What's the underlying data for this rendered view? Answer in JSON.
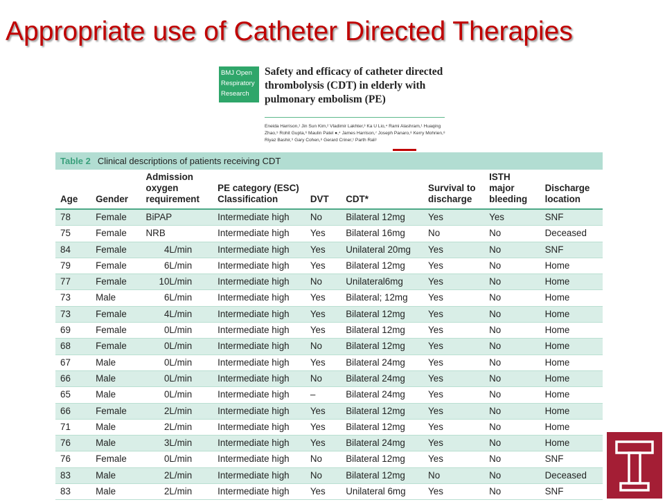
{
  "slide": {
    "title": "Appropriate use of Catheter Directed Therapies"
  },
  "paper": {
    "journal": [
      "BMJ Open",
      "Respiratory",
      "Research"
    ],
    "title": "Safety and efficacy of catheter directed thrombolysis (CDT) in elderly with pulmonary embolism (PE)",
    "authors": "Eneida Harrison,¹ Jin Sun Kim,² Vladimir Lakhter,³ Ka U Lio,⁴ Rami Alashram,¹ Huaqing Zhao,⁵ Rohit Gupta,⁶ Maulin Patel ●,⁴ James Harrison,⁷ Joseph Panaro,⁸ Kerry Mohrien,⁸ Riyaz Bashir,⁹ Gary Cohen,⁸ Gerard Criner,¹ Parth Rali¹"
  },
  "table": {
    "label": "Table 2",
    "caption": "Clinical descriptions of patients receiving CDT",
    "columns": [
      "Age",
      "Gender",
      "Admission oxygen requirement",
      "PE category (ESC) Classification",
      "DVT",
      "CDT*",
      "Survival to discharge",
      "ISTH major bleeding",
      "Discharge location"
    ],
    "rows": [
      [
        "78",
        "Female",
        "BiPAP",
        "Intermediate high",
        "No",
        "Bilateral 12mg",
        "Yes",
        "Yes",
        "SNF"
      ],
      [
        "75",
        "Female",
        "NRB",
        "Intermediate high",
        "Yes",
        "Bilateral 16mg",
        "No",
        "No",
        "Deceased"
      ],
      [
        "84",
        "Female",
        "4L/min",
        "Intermediate high",
        "Yes",
        "Unilateral 20mg",
        "Yes",
        "No",
        "SNF"
      ],
      [
        "79",
        "Female",
        "6L/min",
        "Intermediate high",
        "Yes",
        "Bilateral 12mg",
        "Yes",
        "No",
        "Home"
      ],
      [
        "77",
        "Female",
        "10L/min",
        "Intermediate high",
        "No",
        "Unilateral6mg",
        "Yes",
        "No",
        "Home"
      ],
      [
        "73",
        "Male",
        "6L/min",
        "Intermediate high",
        "Yes",
        "Bilateral; 12mg",
        "Yes",
        "No",
        "Home"
      ],
      [
        "73",
        "Female",
        "4L/min",
        "Intermediate high",
        "Yes",
        "Bilateral 12mg",
        "Yes",
        "No",
        "Home"
      ],
      [
        "69",
        "Female",
        "0L/min",
        "Intermediate high",
        "Yes",
        "Bilateral 12mg",
        "Yes",
        "No",
        "Home"
      ],
      [
        "68",
        "Female",
        "0L/min",
        "Intermediate high",
        "No",
        "Bilateral 12mg",
        "Yes",
        "No",
        "Home"
      ],
      [
        "67",
        "Male",
        "0L/min",
        "Intermediate high",
        "Yes",
        "Bilateral 24mg",
        "Yes",
        "No",
        "Home"
      ],
      [
        "66",
        "Male",
        "0L/min",
        "Intermediate high",
        "No",
        "Bilateral 24mg",
        "Yes",
        "No",
        "Home"
      ],
      [
        "65",
        "Male",
        "0L/min",
        "Intermediate high",
        "–",
        "Bilateral 24mg",
        "Yes",
        "No",
        "Home"
      ],
      [
        "66",
        "Female",
        "2L/min",
        "Intermediate high",
        "Yes",
        "Bilateral 12mg",
        "Yes",
        "No",
        "Home"
      ],
      [
        "71",
        "Male",
        "2L/min",
        "Intermediate high",
        "Yes",
        "Bilateral 12mg",
        "Yes",
        "No",
        "Home"
      ],
      [
        "76",
        "Male",
        "3L/min",
        "Intermediate high",
        "Yes",
        "Bilateral 24mg",
        "Yes",
        "No",
        "Home"
      ],
      [
        "76",
        "Female",
        "0L/min",
        "Intermediate high",
        "No",
        "Bilateral 12mg",
        "Yes",
        "No",
        "SNF"
      ],
      [
        "83",
        "Male",
        "2L/min",
        "Intermediate high",
        "No",
        "Bilateral 12mg",
        "No",
        "No",
        "Deceased"
      ],
      [
        "83",
        "Male",
        "2L/min",
        "Intermediate high",
        "Yes",
        "Unilateral 6mg",
        "Yes",
        "No",
        "SNF"
      ]
    ]
  },
  "logo": {
    "icon": "temple-t-icon",
    "color": "#a41e35"
  }
}
